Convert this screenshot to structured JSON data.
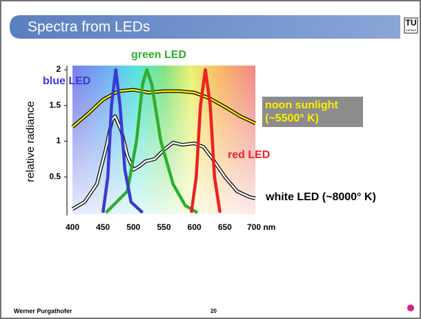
{
  "slide_title": "Spectra from LEDs",
  "logo": {
    "main": "TU",
    "sub": "VIENNA"
  },
  "footer": {
    "author": "Werner Purgathofer",
    "page": "20"
  },
  "chart_data": {
    "type": "line",
    "ylabel": "relative radiance",
    "xlim": [
      400,
      700
    ],
    "xticks": [
      400,
      450,
      500,
      550,
      600,
      650,
      {
        "value": 700,
        "label": "700 nm"
      }
    ],
    "ylim": [
      0,
      2
    ],
    "yticks": [
      0.5,
      1,
      1.5,
      2
    ],
    "series": [
      {
        "name": "blue LED",
        "color": "#3a3ad0",
        "x": [
          450,
          458,
          464,
          471,
          478,
          486,
          496,
          515
        ],
        "values": [
          0,
          0.5,
          1.5,
          2,
          1.5,
          0.6,
          0.15,
          0
        ]
      },
      {
        "name": "green LED",
        "color": "#2fae2f",
        "x": [
          455,
          490,
          505,
          515,
          522,
          530,
          545,
          565,
          585,
          605
        ],
        "values": [
          0,
          0.3,
          1,
          1.8,
          2,
          1.8,
          1,
          0.4,
          0.1,
          0
        ]
      },
      {
        "name": "red LED",
        "color": "#ee2020",
        "x": [
          595,
          603,
          610,
          618,
          626,
          633,
          642
        ],
        "values": [
          0,
          0.5,
          1.5,
          2,
          1.5,
          0.5,
          0
        ]
      },
      {
        "name": "noon sunlight (~5500° K)",
        "color": "#ffee00",
        "x": [
          400,
          425,
          450,
          475,
          500,
          525,
          550,
          575,
          600,
          625,
          650,
          675,
          700
        ],
        "values": [
          1.2,
          1.38,
          1.58,
          1.7,
          1.72,
          1.68,
          1.7,
          1.7,
          1.68,
          1.6,
          1.48,
          1.35,
          1.25
        ]
      },
      {
        "name": "white LED (~8000° K)",
        "color": "#ffffff",
        "x": [
          400,
          420,
          440,
          455,
          465,
          470,
          480,
          490,
          500,
          510,
          520,
          535,
          550,
          565,
          580,
          600,
          615,
          630,
          650,
          670,
          690,
          700
        ],
        "values": [
          0.05,
          0.15,
          0.4,
          0.9,
          1.3,
          1.35,
          1.15,
          0.8,
          0.6,
          0.65,
          0.72,
          0.75,
          0.88,
          0.98,
          0.95,
          0.97,
          0.92,
          0.75,
          0.5,
          0.3,
          0.22,
          0.2
        ]
      }
    ]
  }
}
